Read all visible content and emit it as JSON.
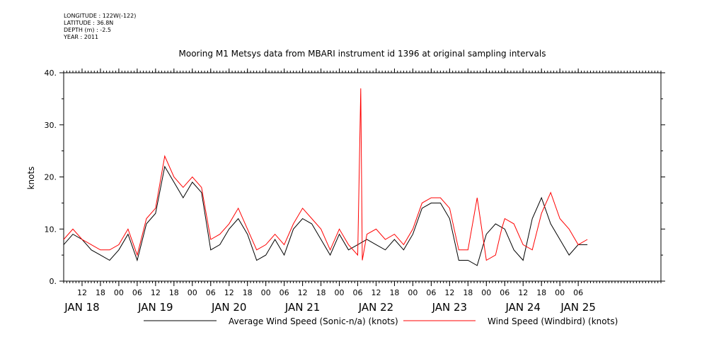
{
  "header": {
    "lines": [
      "LONGITUDE : 122W(-122)",
      "LATITUDE : 36.8N",
      "DEPTH (m) : -2.5",
      "YEAR : 2011"
    ]
  },
  "chart_data": {
    "type": "line",
    "title": "Mooring M1 Metsys data from MBARI instrument id 1396 at original sampling intervals",
    "ylabel": "knots",
    "xlabel": "",
    "xlim": [
      "2011-01-17T06:00",
      "2011-01-25T09:00"
    ],
    "ylim": [
      0,
      40
    ],
    "yticks": [
      0,
      10,
      20,
      30,
      40
    ],
    "ytick_labels": [
      "0.",
      "10.",
      "20.",
      "30.",
      "40."
    ],
    "hour_ticks": [
      {
        "t": "2011-01-17T12:00",
        "label": "12"
      },
      {
        "t": "2011-01-17T18:00",
        "label": "18"
      },
      {
        "t": "2011-01-18T00:00",
        "label": "00"
      },
      {
        "t": "2011-01-18T06:00",
        "label": "06"
      },
      {
        "t": "2011-01-18T12:00",
        "label": "12"
      },
      {
        "t": "2011-01-18T18:00",
        "label": "18"
      },
      {
        "t": "2011-01-19T00:00",
        "label": "00"
      },
      {
        "t": "2011-01-19T06:00",
        "label": "06"
      },
      {
        "t": "2011-01-19T12:00",
        "label": "12"
      },
      {
        "t": "2011-01-19T18:00",
        "label": "18"
      },
      {
        "t": "2011-01-20T00:00",
        "label": "00"
      },
      {
        "t": "2011-01-20T06:00",
        "label": "06"
      },
      {
        "t": "2011-01-20T12:00",
        "label": "12"
      },
      {
        "t": "2011-01-20T18:00",
        "label": "18"
      },
      {
        "t": "2011-01-21T00:00",
        "label": "00"
      },
      {
        "t": "2011-01-21T06:00",
        "label": "06"
      },
      {
        "t": "2011-01-21T12:00",
        "label": "12"
      },
      {
        "t": "2011-01-21T18:00",
        "label": "18"
      },
      {
        "t": "2011-01-22T00:00",
        "label": "00"
      },
      {
        "t": "2011-01-22T06:00",
        "label": "06"
      },
      {
        "t": "2011-01-22T12:00",
        "label": "12"
      },
      {
        "t": "2011-01-22T18:00",
        "label": "18"
      },
      {
        "t": "2011-01-23T00:00",
        "label": "00"
      },
      {
        "t": "2011-01-23T06:00",
        "label": "06"
      },
      {
        "t": "2011-01-23T12:00",
        "label": "12"
      },
      {
        "t": "2011-01-23T18:00",
        "label": "18"
      },
      {
        "t": "2011-01-24T00:00",
        "label": "00"
      },
      {
        "t": "2011-01-24T06:00",
        "label": "06"
      }
    ],
    "day_labels": [
      {
        "t": "2011-01-17T12:00",
        "label": "JAN 18"
      },
      {
        "t": "2011-01-18T12:00",
        "label": "JAN 19"
      },
      {
        "t": "2011-01-19T12:00",
        "label": "JAN 20"
      },
      {
        "t": "2011-01-20T12:00",
        "label": "JAN 21"
      },
      {
        "t": "2011-01-21T12:00",
        "label": "JAN 22"
      },
      {
        "t": "2011-01-22T12:00",
        "label": "JAN 23"
      },
      {
        "t": "2011-01-23T12:00",
        "label": "JAN 24"
      },
      {
        "t": "2011-01-24T06:00",
        "label": "JAN 25"
      }
    ],
    "legend_position": "bottom",
    "series": [
      {
        "name": "Average Wind Speed (Sonic-n/a) (knots)",
        "color": "#000000",
        "t": [
          "2011-01-17T06:00",
          "2011-01-17T09:00",
          "2011-01-17T12:00",
          "2011-01-17T15:00",
          "2011-01-17T18:00",
          "2011-01-17T21:00",
          "2011-01-18T00:00",
          "2011-01-18T03:00",
          "2011-01-18T06:00",
          "2011-01-18T09:00",
          "2011-01-18T12:00",
          "2011-01-18T15:00",
          "2011-01-18T18:00",
          "2011-01-18T21:00",
          "2011-01-19T00:00",
          "2011-01-19T03:00",
          "2011-01-19T06:00",
          "2011-01-19T09:00",
          "2011-01-19T12:00",
          "2011-01-19T15:00",
          "2011-01-19T18:00",
          "2011-01-19T21:00",
          "2011-01-20T00:00",
          "2011-01-20T03:00",
          "2011-01-20T06:00",
          "2011-01-20T09:00",
          "2011-01-20T12:00",
          "2011-01-20T15:00",
          "2011-01-20T18:00",
          "2011-01-20T21:00",
          "2011-01-21T00:00",
          "2011-01-21T03:00",
          "2011-01-21T06:00",
          "2011-01-21T09:00",
          "2011-01-21T12:00",
          "2011-01-21T15:00",
          "2011-01-21T18:00",
          "2011-01-21T21:00",
          "2011-01-22T00:00",
          "2011-01-22T03:00",
          "2011-01-22T06:00",
          "2011-01-22T09:00",
          "2011-01-22T12:00",
          "2011-01-22T15:00",
          "2011-01-22T18:00",
          "2011-01-22T21:00",
          "2011-01-23T00:00",
          "2011-01-23T03:00",
          "2011-01-23T06:00",
          "2011-01-23T09:00",
          "2011-01-23T12:00",
          "2011-01-23T15:00",
          "2011-01-23T18:00",
          "2011-01-23T21:00",
          "2011-01-24T00:00",
          "2011-01-24T03:00",
          "2011-01-24T06:00",
          "2011-01-24T09:00"
        ],
        "values": [
          7,
          9,
          8,
          6,
          5,
          4,
          6,
          9,
          4,
          11,
          13,
          22,
          19,
          16,
          19,
          17,
          6,
          7,
          10,
          12,
          9,
          4,
          5,
          8,
          5,
          10,
          12,
          11,
          8,
          5,
          9,
          6,
          7,
          8,
          7,
          6,
          8,
          6,
          9,
          14,
          15,
          15,
          12,
          4,
          4,
          3,
          9,
          11,
          10,
          6,
          4,
          12,
          16,
          11,
          8,
          5,
          7,
          7
        ]
      },
      {
        "name": "Wind Speed (Windbird) (knots)",
        "color": "#ff0000",
        "t": [
          "2011-01-17T06:00",
          "2011-01-17T09:00",
          "2011-01-17T12:00",
          "2011-01-17T15:00",
          "2011-01-17T18:00",
          "2011-01-17T21:00",
          "2011-01-18T00:00",
          "2011-01-18T03:00",
          "2011-01-18T06:00",
          "2011-01-18T09:00",
          "2011-01-18T12:00",
          "2011-01-18T15:00",
          "2011-01-18T18:00",
          "2011-01-18T21:00",
          "2011-01-19T00:00",
          "2011-01-19T03:00",
          "2011-01-19T06:00",
          "2011-01-19T09:00",
          "2011-01-19T12:00",
          "2011-01-19T15:00",
          "2011-01-19T18:00",
          "2011-01-19T21:00",
          "2011-01-20T00:00",
          "2011-01-20T03:00",
          "2011-01-20T06:00",
          "2011-01-20T09:00",
          "2011-01-20T12:00",
          "2011-01-20T15:00",
          "2011-01-20T18:00",
          "2011-01-20T21:00",
          "2011-01-21T00:00",
          "2011-01-21T03:00",
          "2011-01-21T06:00",
          "2011-01-21T07:00",
          "2011-01-21T07:30",
          "2011-01-21T09:00",
          "2011-01-21T12:00",
          "2011-01-21T15:00",
          "2011-01-21T18:00",
          "2011-01-21T21:00",
          "2011-01-22T00:00",
          "2011-01-22T03:00",
          "2011-01-22T06:00",
          "2011-01-22T09:00",
          "2011-01-22T12:00",
          "2011-01-22T15:00",
          "2011-01-22T18:00",
          "2011-01-22T21:00",
          "2011-01-23T00:00",
          "2011-01-23T03:00",
          "2011-01-23T05:00",
          "2011-01-23T06:00",
          "2011-01-23T09:00",
          "2011-01-23T12:00",
          "2011-01-23T15:00",
          "2011-01-23T18:00",
          "2011-01-23T21:00",
          "2011-01-24T00:00",
          "2011-01-24T03:00",
          "2011-01-24T06:00",
          "2011-01-24T09:00"
        ],
        "values": [
          8,
          10,
          8,
          7,
          6,
          6,
          7,
          10,
          5,
          12,
          14,
          24,
          20,
          18,
          20,
          18,
          8,
          9,
          11,
          14,
          10,
          6,
          7,
          9,
          7,
          11,
          14,
          12,
          10,
          6,
          10,
          7,
          5,
          37,
          4,
          9,
          10,
          8,
          9,
          7,
          10,
          15,
          16,
          16,
          14,
          6,
          6,
          16,
          4,
          5,
          10,
          12,
          11,
          7,
          6,
          13,
          17,
          12,
          10,
          7,
          8
        ]
      }
    ]
  }
}
